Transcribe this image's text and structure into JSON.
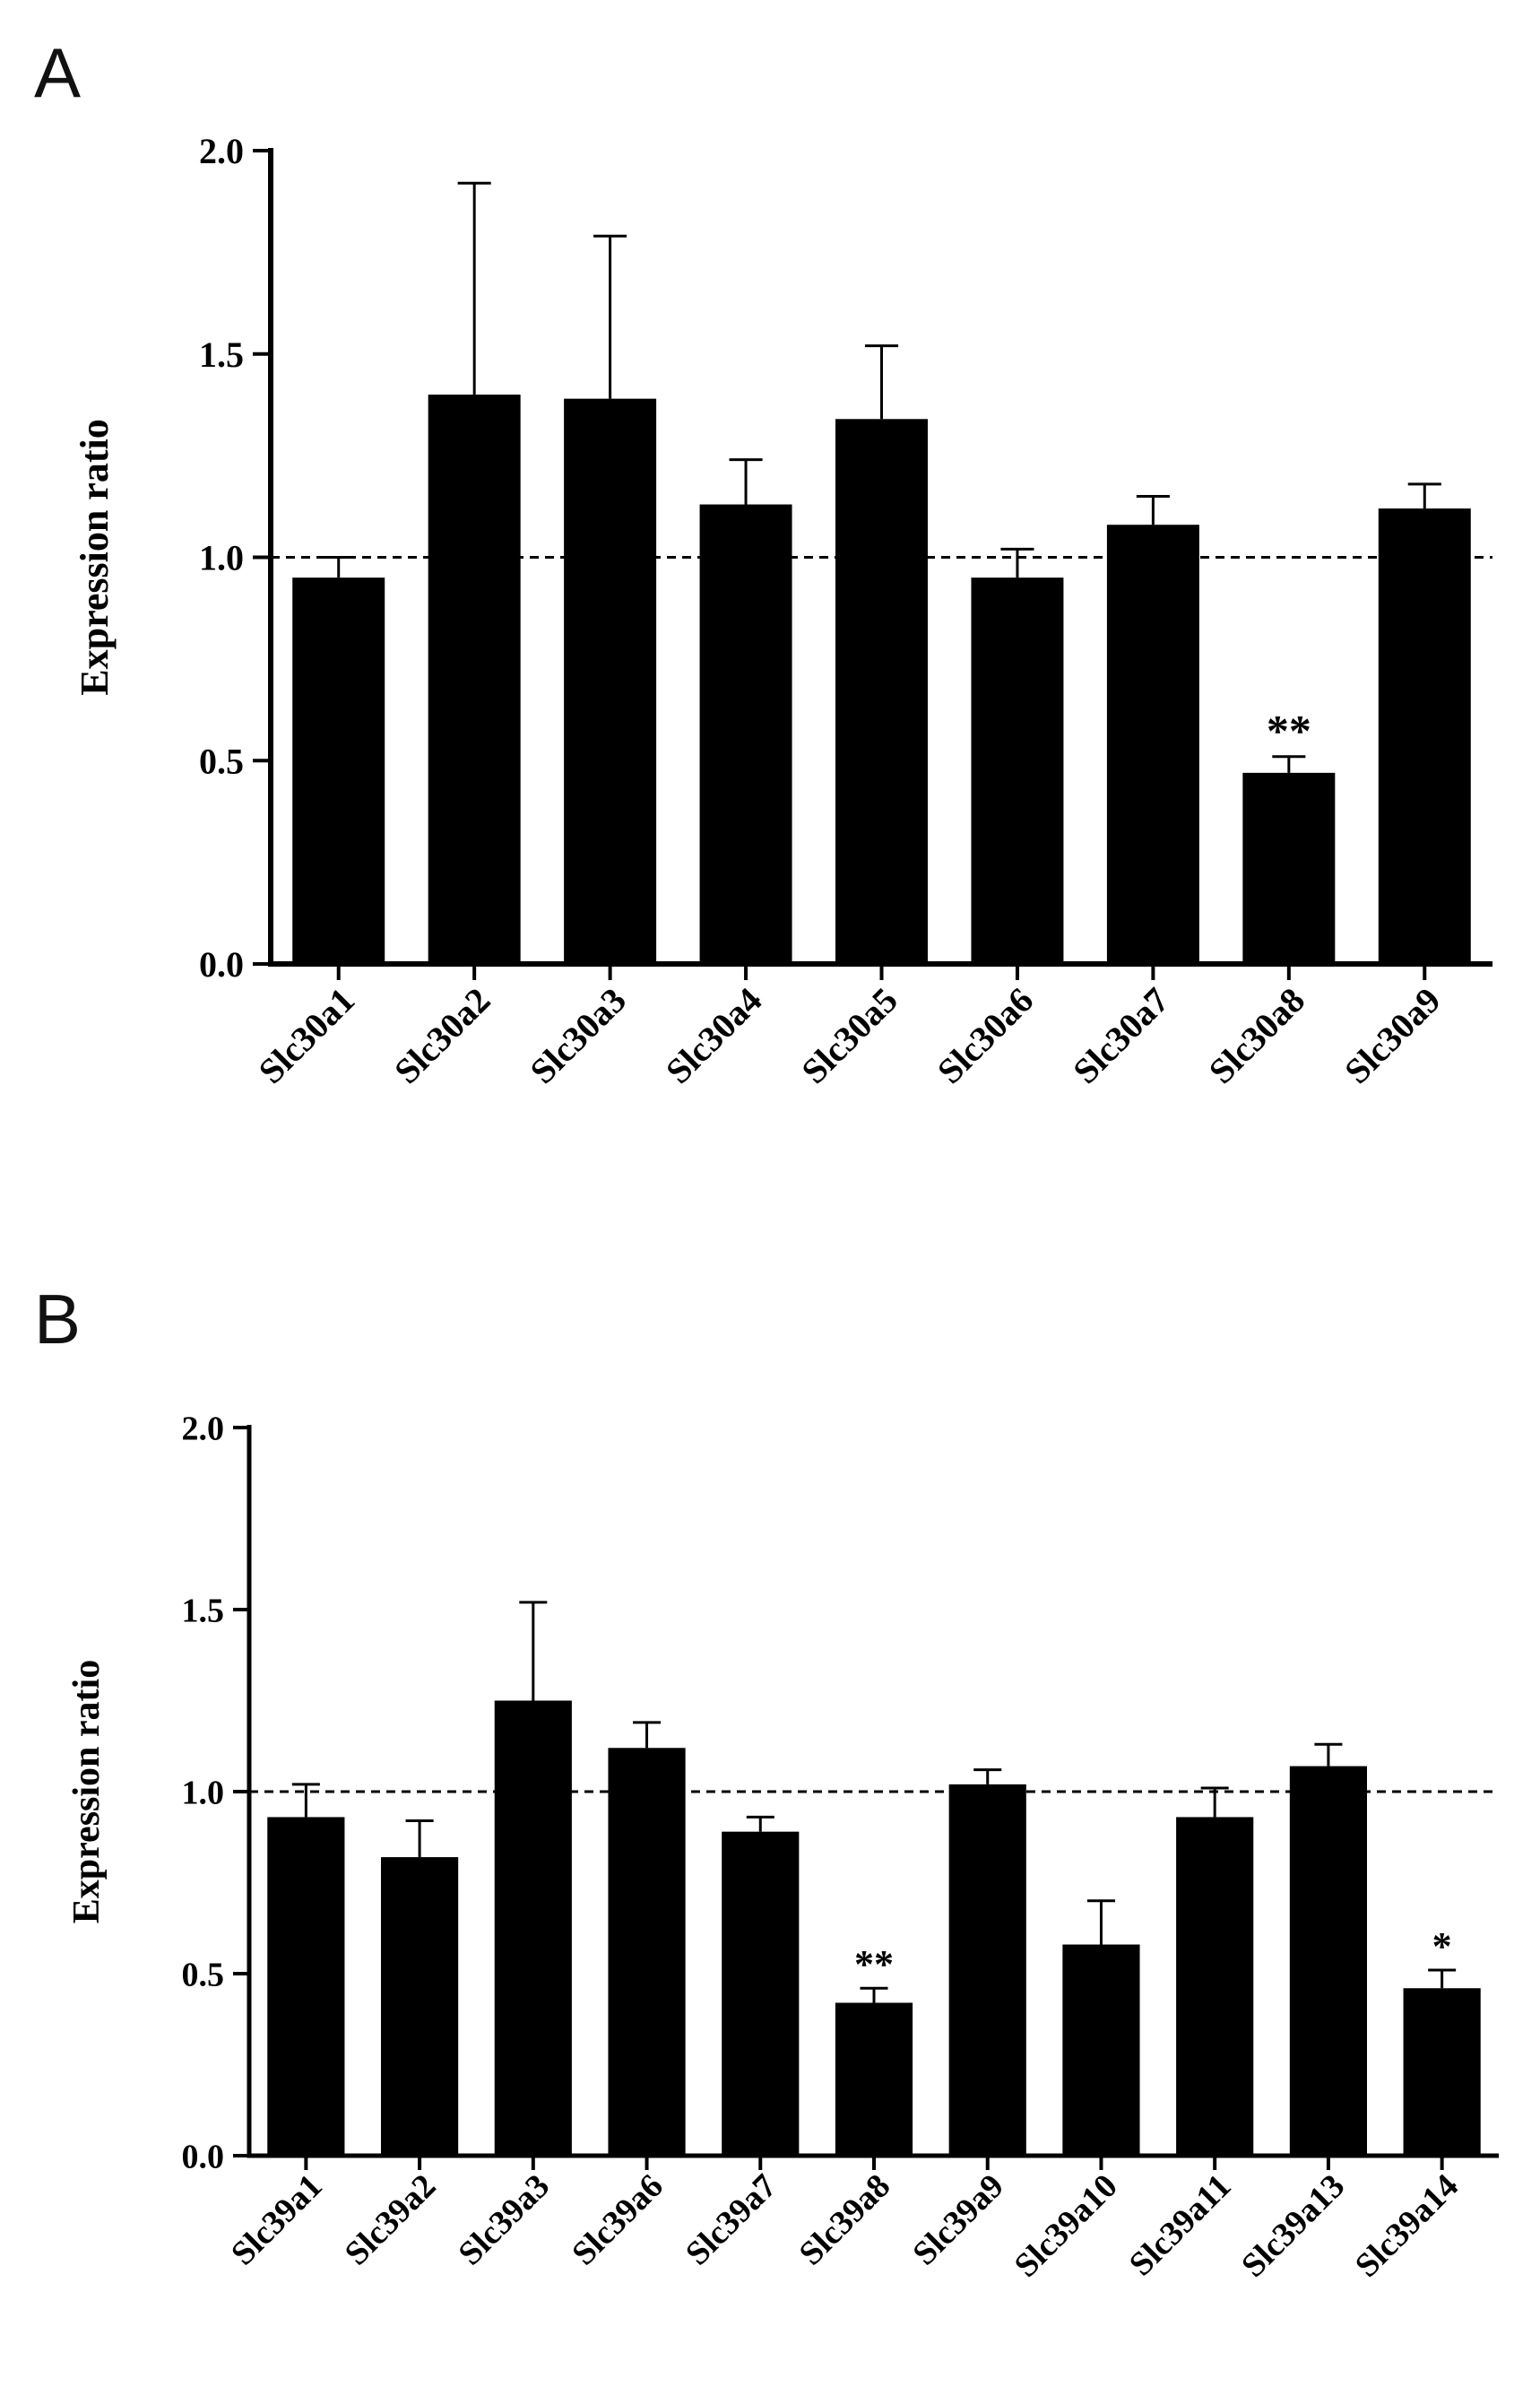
{
  "chart_data": [
    {
      "panel_label": "A",
      "type": "bar",
      "title": "",
      "xlabel": "",
      "ylabel": "Expression ratio",
      "ylim": [
        0,
        2.0
      ],
      "yticks": [
        "0.0",
        "0.5",
        "1.0",
        "1.5",
        "2.0"
      ],
      "reference_line": 1.0,
      "grid": false,
      "categories": [
        "Slc30a1",
        "Slc30a2",
        "Slc30a3",
        "Slc30a4",
        "Slc30a5",
        "Slc30a6",
        "Slc30a7",
        "Slc30a8",
        "Slc30a9"
      ],
      "values": [
        0.95,
        1.4,
        1.39,
        1.13,
        1.34,
        0.95,
        1.08,
        0.47,
        1.12
      ],
      "errors": [
        0.05,
        0.52,
        0.4,
        0.11,
        0.18,
        0.07,
        0.07,
        0.04,
        0.06
      ],
      "significance": [
        "",
        "",
        "",
        "",
        "",
        "",
        "",
        "**",
        ""
      ],
      "bar_color": "#000000"
    },
    {
      "panel_label": "B",
      "type": "bar",
      "title": "",
      "xlabel": "",
      "ylabel": "Expression ratio",
      "ylim": [
        0,
        2.0
      ],
      "yticks": [
        "0.0",
        "0.5",
        "1.0",
        "1.5",
        "2.0"
      ],
      "reference_line": 1.0,
      "grid": false,
      "categories": [
        "Slc39a1",
        "Slc39a2",
        "Slc39a3",
        "Slc39a6",
        "Slc39a7",
        "Slc39a8",
        "Slc39a9",
        "Slc39a10",
        "Slc39a11",
        "Slc39a13",
        "Slc39a14"
      ],
      "values": [
        0.93,
        0.82,
        1.25,
        1.12,
        0.89,
        0.42,
        1.02,
        0.58,
        0.93,
        1.07,
        0.46
      ],
      "errors": [
        0.09,
        0.1,
        0.27,
        0.07,
        0.04,
        0.04,
        0.04,
        0.12,
        0.08,
        0.06,
        0.05
      ],
      "significance": [
        "",
        "",
        "",
        "",
        "",
        "**",
        "",
        "",
        "",
        "",
        "*"
      ],
      "bar_color": "#000000"
    }
  ]
}
